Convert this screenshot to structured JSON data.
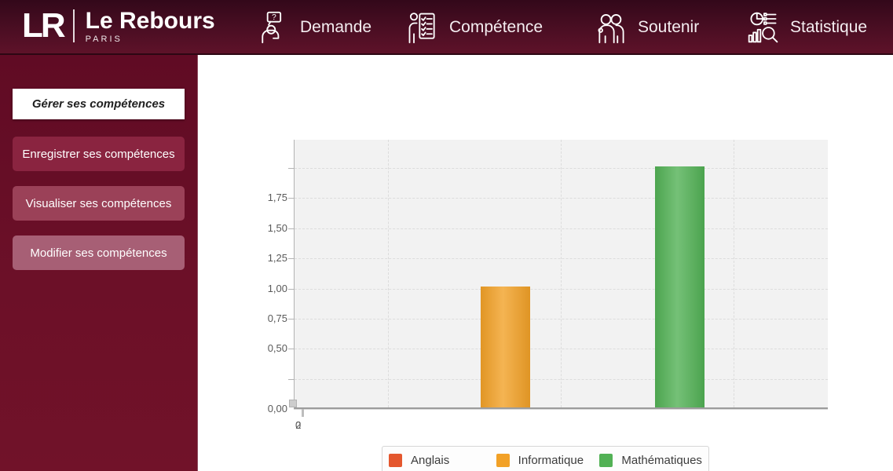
{
  "app": {
    "logo_monogram": "LR",
    "brand": "Le Rebours",
    "brand_subtitle": "PARIS"
  },
  "nav": {
    "items": [
      {
        "label": "Demande",
        "icon": "person-question-icon",
        "icon_glyph": "?"
      },
      {
        "label": "Compétence",
        "icon": "person-checklist-icon"
      },
      {
        "label": "Soutenir",
        "icon": "two-people-icon"
      },
      {
        "label": "Statistique",
        "icon": "stats-magnifier-icon"
      }
    ]
  },
  "sidebar": {
    "items": [
      {
        "label": "Gérer ses compétences",
        "active": true
      },
      {
        "label": "Enregistrer ses compétences",
        "active": false
      },
      {
        "label": "Visualiser ses compétences",
        "active": false
      },
      {
        "label": "Modifier ses compétences",
        "active": false
      }
    ]
  },
  "chart_data": {
    "type": "bar",
    "title": "",
    "series": [
      {
        "name": "Anglais",
        "value": 0,
        "color": "#e4572e"
      },
      {
        "name": "Informatique",
        "value": 1,
        "color": "#f2a127"
      },
      {
        "name": "Mathématiques",
        "value": 2,
        "color": "#52b155"
      }
    ],
    "x_tick_label": "02",
    "yticks": [
      {
        "value": 2.0,
        "label": ""
      },
      {
        "value": 1.75,
        "label": "1,75"
      },
      {
        "value": 1.5,
        "label": "1,50"
      },
      {
        "value": 1.25,
        "label": "1,25"
      },
      {
        "value": 1.0,
        "label": "1,00"
      },
      {
        "value": 0.75,
        "label": "0,75"
      },
      {
        "value": 0.5,
        "label": "0,50"
      },
      {
        "value": 0.25,
        "label": ""
      },
      {
        "value": 0.0,
        "label": "0,00"
      }
    ],
    "ylim": [
      0,
      2.25
    ],
    "decimal_separator": "comma",
    "grid": "dashed",
    "legend_position": "bottom"
  },
  "colors": {
    "topbar_top": "#33081a",
    "topbar_bottom": "#5e1229",
    "sidebar_top": "#600b24",
    "sidebar_bottom": "#711229",
    "active_button_bg": "#ffffff",
    "active_button_text": "#1f1f1f",
    "button2_bg": "#8a2440",
    "button3_bg": "#9b4158",
    "button4_bg": "#a75f75",
    "plot_bg": "#f2f2f2"
  }
}
